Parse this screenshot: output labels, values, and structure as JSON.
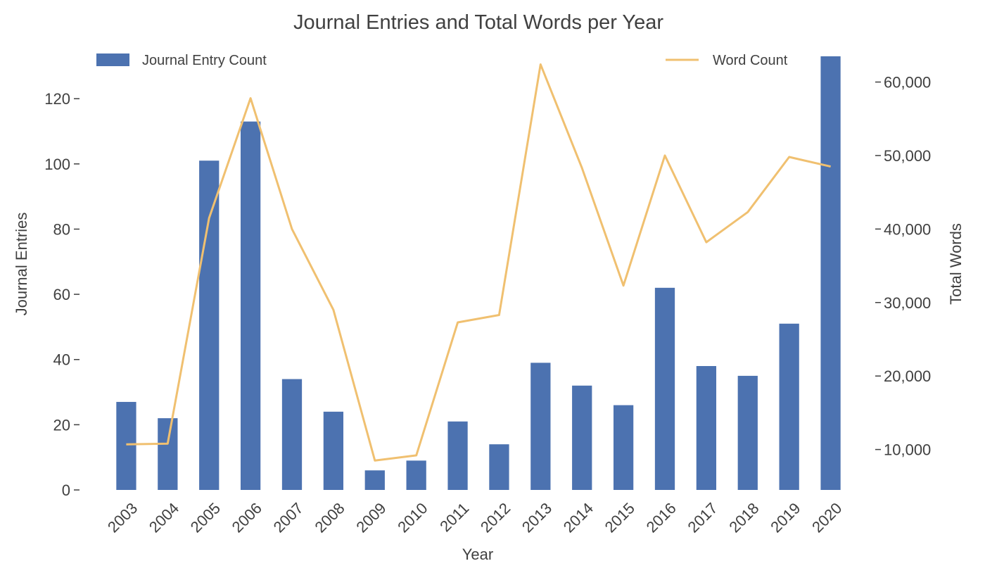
{
  "chart_data": {
    "type": "bar",
    "title": "Journal Entries and Total Words per Year",
    "xlabel": "Year",
    "ylabel": "Journal Entries",
    "ylabel_right": "Total Words",
    "categories": [
      "2003",
      "2004",
      "2005",
      "2006",
      "2007",
      "2008",
      "2009",
      "2010",
      "2011",
      "2012",
      "2013",
      "2014",
      "2015",
      "2016",
      "2017",
      "2018",
      "2019",
      "2020"
    ],
    "ylim": [
      0,
      133
    ],
    "ylim_right": [
      4500,
      63500
    ],
    "yticks": [
      0,
      20,
      40,
      60,
      80,
      100,
      120
    ],
    "yticks_right": [
      10000,
      20000,
      30000,
      40000,
      50000,
      60000
    ],
    "ytick_labels": [
      "0",
      "20",
      "40",
      "60",
      "80",
      "100",
      "120"
    ],
    "ytick_labels_right": [
      "10,000",
      "20,000",
      "30,000",
      "40,000",
      "50,000",
      "60,000"
    ],
    "grid": false,
    "series": [
      {
        "name": "Journal Entry Count",
        "type": "bar",
        "axis": "left",
        "color": "#4c72b0",
        "values": [
          27,
          22,
          101,
          113,
          34,
          24,
          6,
          9,
          21,
          14,
          39,
          32,
          26,
          62,
          38,
          35,
          51,
          133
        ]
      },
      {
        "name": "Word Count",
        "type": "line",
        "axis": "right",
        "color": "#f0c070",
        "values": [
          10700,
          10800,
          41500,
          57800,
          40000,
          29000,
          8500,
          9200,
          27300,
          28300,
          62400,
          48300,
          32300,
          50000,
          38200,
          42300,
          49800,
          48500
        ]
      }
    ],
    "legend": [
      {
        "label": "Journal Entry Count",
        "placement": "top-left"
      },
      {
        "label": "Word Count",
        "placement": "top-right"
      }
    ]
  }
}
